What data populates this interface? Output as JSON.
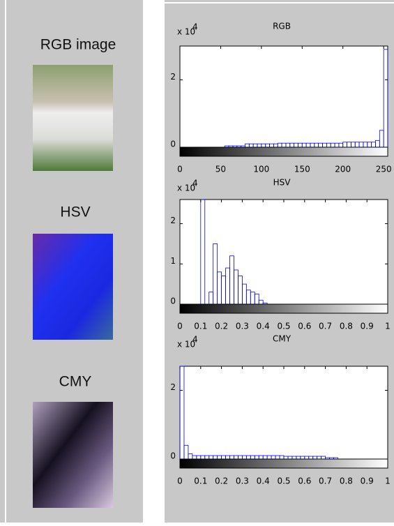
{
  "images": {
    "labels": [
      "RGB image",
      "HSV",
      "CMY"
    ]
  },
  "chart_data": [
    {
      "type": "histogram",
      "title": "RGB",
      "y_multiplier": {
        "base": "x 10",
        "exponent": "4"
      },
      "color": "#0000ff",
      "bins": [
        0,
        5,
        10,
        15,
        20,
        25,
        30,
        35,
        40,
        45,
        50,
        55,
        60,
        65,
        70,
        75,
        80,
        85,
        90,
        95,
        100,
        105,
        110,
        115,
        120,
        125,
        130,
        135,
        140,
        145,
        150,
        155,
        160,
        165,
        170,
        175,
        180,
        185,
        190,
        195,
        200,
        205,
        210,
        215,
        220,
        225,
        230,
        235,
        240,
        245,
        250,
        255
      ],
      "values": [
        0,
        0,
        0,
        0,
        0,
        0,
        0,
        0,
        0,
        0,
        0,
        0.04,
        0.04,
        0.04,
        0.04,
        0.04,
        0.1,
        0.1,
        0.1,
        0.1,
        0.1,
        0.1,
        0.1,
        0.1,
        0.12,
        0.12,
        0.12,
        0.12,
        0.12,
        0.12,
        0.12,
        0.12,
        0.12,
        0.12,
        0.12,
        0.12,
        0.12,
        0.12,
        0.12,
        0.12,
        0.15,
        0.15,
        0.15,
        0.15,
        0.15,
        0.15,
        0.15,
        0.15,
        0.2,
        0.5,
        2.9
      ],
      "xlim": [
        0,
        255
      ],
      "xticks": [
        0,
        50,
        100,
        150,
        200,
        250
      ],
      "ylim": [
        0,
        3
      ],
      "yticks": [
        0,
        2
      ]
    },
    {
      "type": "histogram",
      "title": "HSV",
      "y_multiplier": {
        "base": "x 10",
        "exponent": "4"
      },
      "color": "#0000ff",
      "bins": [
        0,
        0.02,
        0.04,
        0.06,
        0.08,
        0.1,
        0.12,
        0.14,
        0.16,
        0.18,
        0.2,
        0.22,
        0.24,
        0.26,
        0.28,
        0.3,
        0.32,
        0.34,
        0.36,
        0.38,
        0.4,
        0.42,
        0.44,
        0.46,
        0.48,
        0.5,
        0.52,
        0.54,
        0.56,
        0.58,
        0.6,
        0.62,
        0.64,
        0.66,
        0.68,
        0.7,
        0.72,
        0.74,
        0.76,
        0.78,
        0.8,
        0.82,
        0.84,
        0.86,
        0.88,
        0.9,
        0.92,
        0.94,
        0.96,
        0.98,
        1
      ],
      "values": [
        0,
        0,
        0,
        0,
        0,
        2.6,
        0,
        0.3,
        1.5,
        0.8,
        0.7,
        0.9,
        1.2,
        0.85,
        0.7,
        0.5,
        0.35,
        0.3,
        0.25,
        0.1,
        0.03,
        0,
        0,
        0,
        0,
        0,
        0,
        0,
        0,
        0,
        0,
        0,
        0,
        0,
        0,
        0,
        0,
        0,
        0,
        0,
        0,
        0,
        0,
        0,
        0,
        0,
        0,
        0,
        0,
        0
      ],
      "xlim": [
        0,
        1
      ],
      "xticks": [
        0,
        0.1,
        0.2,
        0.3,
        0.4,
        0.5,
        0.6,
        0.7,
        0.8,
        0.9,
        1
      ],
      "ylim": [
        0,
        2.6
      ],
      "yticks": [
        0,
        1,
        2
      ]
    },
    {
      "type": "histogram",
      "title": "CMY",
      "y_multiplier": {
        "base": "x 10",
        "exponent": "4"
      },
      "color": "#0000ff",
      "bins": [
        0,
        0.02,
        0.04,
        0.06,
        0.08,
        0.1,
        0.12,
        0.14,
        0.16,
        0.18,
        0.2,
        0.22,
        0.24,
        0.26,
        0.28,
        0.3,
        0.32,
        0.34,
        0.36,
        0.38,
        0.4,
        0.42,
        0.44,
        0.46,
        0.48,
        0.5,
        0.52,
        0.54,
        0.56,
        0.58,
        0.6,
        0.62,
        0.64,
        0.66,
        0.68,
        0.7,
        0.72,
        0.74,
        0.76,
        0.78,
        0.8,
        0.82,
        0.84,
        0.86,
        0.88,
        0.9,
        0.92,
        0.94,
        0.96,
        0.98,
        1
      ],
      "values": [
        2.7,
        0.4,
        0.15,
        0.1,
        0.1,
        0.1,
        0.1,
        0.1,
        0.1,
        0.1,
        0.1,
        0.1,
        0.1,
        0.1,
        0.1,
        0.1,
        0.1,
        0.1,
        0.1,
        0.1,
        0.1,
        0.1,
        0.1,
        0.1,
        0.1,
        0.08,
        0.08,
        0.08,
        0.08,
        0.08,
        0.08,
        0.08,
        0.08,
        0.08,
        0.08,
        0.04,
        0.04,
        0.04,
        0,
        0,
        0,
        0,
        0,
        0,
        0,
        0,
        0,
        0,
        0,
        0
      ],
      "xlim": [
        0,
        1
      ],
      "xticks": [
        0,
        0.1,
        0.2,
        0.3,
        0.4,
        0.5,
        0.6,
        0.7,
        0.8,
        0.9,
        1
      ],
      "ylim": [
        0,
        2.7
      ],
      "yticks": [
        0,
        2
      ]
    }
  ]
}
